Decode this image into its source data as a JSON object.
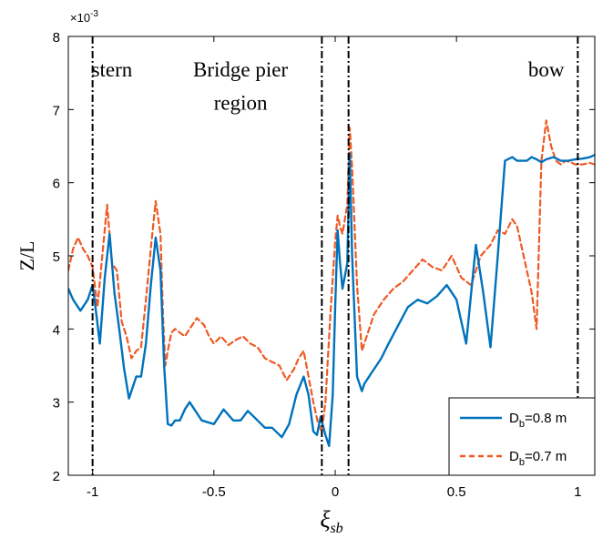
{
  "chart_data": {
    "type": "line",
    "xlabel": "ξsb",
    "ylabel": "Z/L",
    "y_exponent": "×10",
    "y_exponent_power": "-3",
    "xlim": [
      -1.1,
      1.07
    ],
    "ylim": [
      2,
      8
    ],
    "xticks": [
      -1,
      -0.5,
      0,
      0.5,
      1
    ],
    "xtick_labels": [
      "-1",
      "-0.5",
      "0",
      "0.5",
      "1"
    ],
    "yticks": [
      2,
      3,
      4,
      5,
      6,
      7,
      8
    ],
    "ytick_labels": [
      "2",
      "3",
      "4",
      "5",
      "6",
      "7",
      "8"
    ],
    "grid": false,
    "legend_position": "bottom-right",
    "vertical_lines": [
      -1,
      -0.055,
      0.055,
      1
    ],
    "annotations": [
      {
        "text": "stern",
        "x": -0.92,
        "y": 7.55
      },
      {
        "text": "Bridge pier",
        "x": -0.39,
        "y": 7.55
      },
      {
        "text": "region",
        "x": -0.39,
        "y": 7.1
      },
      {
        "text": "bow",
        "x": 0.87,
        "y": 7.55
      }
    ],
    "series": [
      {
        "name": "Db=0.8 m",
        "legend_main": "D",
        "legend_sub": "b",
        "legend_rest": "=0.8 m",
        "color": "#0072BD",
        "style": "solid",
        "x": [
          -1.1,
          -1.08,
          -1.05,
          -1.02,
          -1.0,
          -0.99,
          -0.97,
          -0.95,
          -0.93,
          -0.91,
          -0.89,
          -0.87,
          -0.85,
          -0.82,
          -0.8,
          -0.78,
          -0.76,
          -0.74,
          -0.72,
          -0.705,
          -0.69,
          -0.675,
          -0.66,
          -0.64,
          -0.62,
          -0.6,
          -0.55,
          -0.52,
          -0.5,
          -0.46,
          -0.42,
          -0.39,
          -0.36,
          -0.32,
          -0.29,
          -0.26,
          -0.22,
          -0.19,
          -0.16,
          -0.13,
          -0.11,
          -0.09,
          -0.075,
          -0.06,
          -0.04,
          -0.025,
          -0.01,
          0.0,
          0.01,
          0.02,
          0.03,
          0.05,
          0.06,
          0.07,
          0.09,
          0.11,
          0.12,
          0.13,
          0.15,
          0.17,
          0.19,
          0.22,
          0.26,
          0.3,
          0.34,
          0.38,
          0.42,
          0.46,
          0.5,
          0.54,
          0.58,
          0.61,
          0.64,
          0.67,
          0.7,
          0.73,
          0.75,
          0.77,
          0.79,
          0.81,
          0.83,
          0.85,
          0.87,
          0.9,
          0.93,
          0.96,
          0.99,
          1.02,
          1.05,
          1.07
        ],
        "y": [
          4.55,
          4.4,
          4.25,
          4.4,
          4.6,
          4.35,
          3.8,
          4.7,
          5.3,
          4.5,
          4.0,
          3.45,
          3.05,
          3.35,
          3.35,
          3.8,
          4.6,
          5.25,
          4.8,
          3.5,
          2.7,
          2.68,
          2.75,
          2.75,
          2.9,
          3.0,
          2.75,
          2.72,
          2.7,
          2.9,
          2.75,
          2.75,
          2.88,
          2.75,
          2.65,
          2.65,
          2.52,
          2.7,
          3.1,
          3.35,
          3.1,
          2.6,
          2.55,
          2.8,
          2.55,
          2.4,
          3.1,
          4.3,
          5.35,
          4.9,
          4.55,
          4.9,
          6.4,
          5.0,
          3.35,
          3.15,
          3.25,
          3.3,
          3.4,
          3.5,
          3.6,
          3.8,
          4.05,
          4.3,
          4.4,
          4.35,
          4.45,
          4.6,
          4.4,
          3.8,
          5.15,
          4.5,
          3.75,
          5.0,
          6.3,
          6.35,
          6.3,
          6.3,
          6.3,
          6.35,
          6.32,
          6.28,
          6.32,
          6.35,
          6.3,
          6.3,
          6.32,
          6.33,
          6.35,
          6.38
        ]
      },
      {
        "name": "Db=0.7 m",
        "legend_main": "D",
        "legend_sub": "b",
        "legend_rest": "=0.7 m",
        "color": "#EE5A24",
        "style": "dashed",
        "x": [
          -1.1,
          -1.08,
          -1.06,
          -1.04,
          -1.02,
          -1.0,
          -0.98,
          -0.96,
          -0.94,
          -0.92,
          -0.9,
          -0.88,
          -0.86,
          -0.84,
          -0.82,
          -0.8,
          -0.78,
          -0.76,
          -0.74,
          -0.72,
          -0.71,
          -0.7,
          -0.69,
          -0.675,
          -0.66,
          -0.64,
          -0.62,
          -0.6,
          -0.57,
          -0.54,
          -0.52,
          -0.5,
          -0.47,
          -0.44,
          -0.41,
          -0.38,
          -0.35,
          -0.32,
          -0.29,
          -0.26,
          -0.23,
          -0.2,
          -0.17,
          -0.15,
          -0.13,
          -0.11,
          -0.09,
          -0.07,
          -0.055,
          -0.04,
          -0.02,
          0.0,
          0.01,
          0.02,
          0.03,
          0.05,
          0.06,
          0.07,
          0.09,
          0.11,
          0.13,
          0.16,
          0.2,
          0.24,
          0.28,
          0.32,
          0.36,
          0.4,
          0.44,
          0.48,
          0.52,
          0.56,
          0.6,
          0.64,
          0.67,
          0.7,
          0.73,
          0.75,
          0.77,
          0.79,
          0.81,
          0.83,
          0.85,
          0.87,
          0.89,
          0.91,
          0.93,
          0.95,
          0.97,
          0.99,
          1.02,
          1.05,
          1.07
        ],
        "y": [
          4.8,
          5.1,
          5.25,
          5.1,
          5.0,
          4.85,
          4.3,
          5.0,
          5.7,
          4.9,
          4.8,
          4.1,
          3.9,
          3.6,
          3.7,
          3.75,
          4.4,
          5.1,
          5.75,
          5.3,
          4.2,
          3.5,
          3.7,
          3.95,
          4.0,
          3.95,
          3.9,
          4.0,
          4.15,
          4.05,
          3.9,
          3.8,
          3.9,
          3.78,
          3.85,
          3.9,
          3.8,
          3.75,
          3.6,
          3.55,
          3.5,
          3.3,
          3.45,
          3.6,
          3.7,
          3.35,
          3.0,
          2.7,
          2.6,
          3.0,
          4.2,
          5.2,
          5.55,
          5.4,
          5.3,
          5.7,
          6.75,
          6.2,
          4.6,
          3.7,
          3.9,
          4.2,
          4.4,
          4.55,
          4.65,
          4.8,
          4.95,
          4.85,
          4.8,
          5.0,
          4.7,
          4.6,
          5.0,
          5.15,
          5.35,
          5.3,
          5.5,
          5.4,
          5.1,
          4.8,
          4.5,
          4.0,
          6.3,
          6.85,
          6.5,
          6.3,
          6.25,
          6.3,
          6.28,
          6.25,
          6.25,
          6.27,
          6.25
        ]
      }
    ]
  }
}
